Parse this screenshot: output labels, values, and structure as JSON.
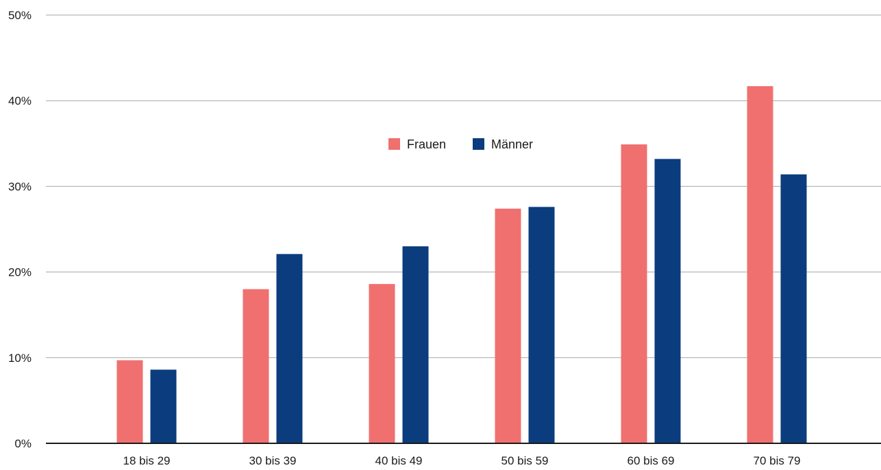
{
  "chart_data": {
    "type": "bar",
    "categories": [
      "18 bis 29",
      "30 bis 39",
      "40 bis 49",
      "50 bis 59",
      "60 bis 69",
      "70 bis 79"
    ],
    "series": [
      {
        "name": "Frauen",
        "color": "#f07070",
        "values": [
          9.7,
          18.0,
          18.6,
          27.4,
          34.9,
          41.7
        ]
      },
      {
        "name": "Männer",
        "color": "#0b3d7e",
        "values": [
          8.6,
          22.1,
          23.0,
          27.6,
          33.2,
          31.4
        ]
      }
    ],
    "title": "",
    "xlabel": "",
    "ylabel": "",
    "ylim": [
      0,
      50
    ],
    "yticks": [
      0,
      10,
      20,
      30,
      40,
      50
    ],
    "ytick_labels": [
      "0%",
      "10%",
      "20%",
      "30%",
      "40%",
      "50%"
    ],
    "grid": true,
    "legend": {
      "placement": "top-center",
      "entries": [
        "Frauen",
        "Männer"
      ]
    }
  }
}
